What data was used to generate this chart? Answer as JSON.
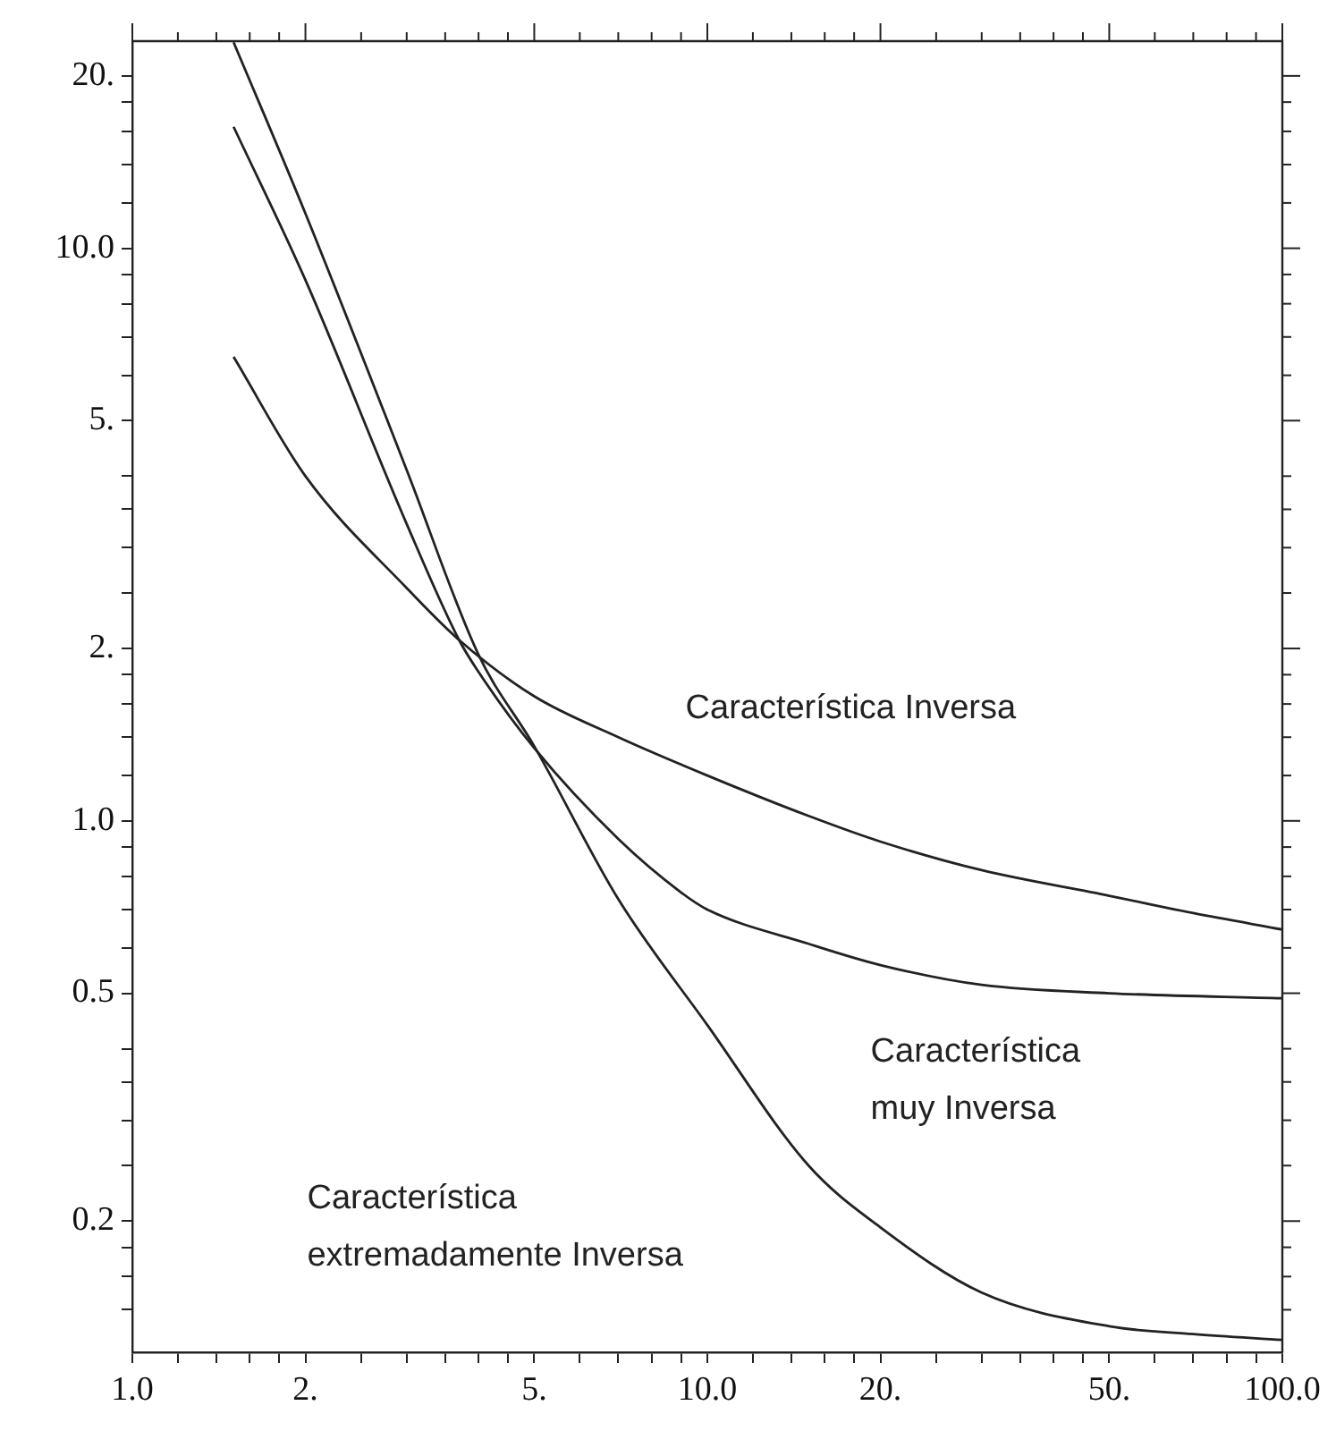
{
  "chart_data": {
    "type": "line",
    "log": "xy",
    "grid": false,
    "legend": false,
    "marker": "none",
    "line_style": "solid",
    "xlim": [
      1,
      100
    ],
    "ylim": [
      0.118,
      23
    ],
    "xticks": [
      {
        "value": 1,
        "label": "1.0"
      },
      {
        "value": 1.2,
        "label": null
      },
      {
        "value": 1.4,
        "label": null
      },
      {
        "value": 1.6,
        "label": null
      },
      {
        "value": 1.8,
        "label": null
      },
      {
        "value": 2,
        "label": "2."
      },
      {
        "value": 2.5,
        "label": null
      },
      {
        "value": 3,
        "label": null
      },
      {
        "value": 3.5,
        "label": null
      },
      {
        "value": 4,
        "label": null
      },
      {
        "value": 4.5,
        "label": null
      },
      {
        "value": 5,
        "label": "5."
      },
      {
        "value": 6,
        "label": null
      },
      {
        "value": 7,
        "label": null
      },
      {
        "value": 8,
        "label": null
      },
      {
        "value": 9,
        "label": null
      },
      {
        "value": 10,
        "label": "10.0"
      },
      {
        "value": 12,
        "label": null
      },
      {
        "value": 14,
        "label": null
      },
      {
        "value": 16,
        "label": null
      },
      {
        "value": 18,
        "label": null
      },
      {
        "value": 20,
        "label": "20."
      },
      {
        "value": 25,
        "label": null
      },
      {
        "value": 30,
        "label": null
      },
      {
        "value": 35,
        "label": null
      },
      {
        "value": 40,
        "label": null
      },
      {
        "value": 45,
        "label": null
      },
      {
        "value": 50,
        "label": "50."
      },
      {
        "value": 60,
        "label": null
      },
      {
        "value": 70,
        "label": null
      },
      {
        "value": 80,
        "label": null
      },
      {
        "value": 90,
        "label": null
      },
      {
        "value": 100,
        "label": "100.0"
      }
    ],
    "yticks": [
      {
        "value": 0.14,
        "label": null
      },
      {
        "value": 0.16,
        "label": null
      },
      {
        "value": 0.18,
        "label": null
      },
      {
        "value": 0.2,
        "label": "0.2"
      },
      {
        "value": 0.25,
        "label": null
      },
      {
        "value": 0.3,
        "label": null
      },
      {
        "value": 0.35,
        "label": null
      },
      {
        "value": 0.4,
        "label": null
      },
      {
        "value": 0.5,
        "label": "0.5"
      },
      {
        "value": 0.6,
        "label": null
      },
      {
        "value": 0.7,
        "label": null
      },
      {
        "value": 0.8,
        "label": null
      },
      {
        "value": 0.9,
        "label": null
      },
      {
        "value": 1,
        "label": "1.0"
      },
      {
        "value": 1.2,
        "label": null
      },
      {
        "value": 1.4,
        "label": null
      },
      {
        "value": 1.6,
        "label": null
      },
      {
        "value": 1.8,
        "label": null
      },
      {
        "value": 2,
        "label": "2."
      },
      {
        "value": 2.5,
        "label": null
      },
      {
        "value": 3,
        "label": null
      },
      {
        "value": 3.5,
        "label": null
      },
      {
        "value": 4,
        "label": null
      },
      {
        "value": 5,
        "label": "5."
      },
      {
        "value": 6,
        "label": null
      },
      {
        "value": 7,
        "label": null
      },
      {
        "value": 8,
        "label": null
      },
      {
        "value": 9,
        "label": null
      },
      {
        "value": 10,
        "label": "10.0"
      },
      {
        "value": 12,
        "label": null
      },
      {
        "value": 14,
        "label": null
      },
      {
        "value": 16,
        "label": null
      },
      {
        "value": 18,
        "label": null
      },
      {
        "value": 20,
        "label": "20."
      }
    ],
    "series": [
      {
        "color": "#222222",
        "x": [
          1.5,
          2,
          3,
          3.7,
          5,
          7,
          10,
          15,
          20,
          30,
          50,
          70,
          100
        ],
        "values": [
          6.46,
          4.0,
          2.55,
          2.07,
          1.65,
          1.4,
          1.2,
          1.02,
          0.92,
          0.82,
          0.74,
          0.69,
          0.646
        ]
      },
      {
        "color": "#222222",
        "x": [
          1.5,
          2,
          3,
          3.7,
          4,
          5,
          7,
          9,
          10,
          15,
          20,
          30,
          50,
          100
        ],
        "values": [
          16.3,
          8.8,
          3.3,
          2.07,
          1.82,
          1.34,
          0.93,
          0.75,
          0.7,
          0.61,
          0.56,
          0.517,
          0.5,
          0.49
        ]
      },
      {
        "color": "#222222",
        "x": [
          1.5,
          2,
          3,
          4,
          5,
          7,
          10,
          15,
          20,
          30,
          50,
          70,
          100
        ],
        "values": [
          22.9,
          11.5,
          4.1,
          1.95,
          1.35,
          0.73,
          0.44,
          0.25,
          0.195,
          0.15,
          0.131,
          0.127,
          0.124
        ]
      }
    ],
    "annotations": [
      "Característica Inversa",
      "Característica\nmuy Inversa",
      "Característica\nextremadamente Inversa"
    ]
  }
}
